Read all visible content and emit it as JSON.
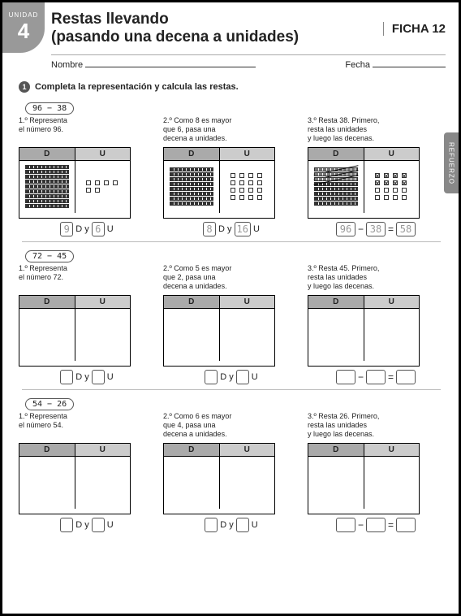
{
  "unit": {
    "label": "UNIDAD",
    "number": "4"
  },
  "title_line1": "Restas llevando",
  "title_line2": "(pasando una decena a unidades)",
  "ficha": "FICHA 12",
  "side_tab": "REFUERZO",
  "name_label": "Nombre",
  "date_label": "Fecha",
  "instruction_number": "1",
  "instruction_text": "Completa la representación y calcula las restas.",
  "headers": {
    "D": "D",
    "U": "U",
    "Dy": "D y",
    "Uu": "U"
  },
  "problems": [
    {
      "expression": "96 − 38",
      "steps": [
        {
          "text": "1.º Representa\nel número 96.",
          "answer_d": "9",
          "answer_u": "6",
          "tens": 9,
          "units": 6,
          "filled": true,
          "crossed_units": 0,
          "crossed_tens": 0
        },
        {
          "text": "2.º Como 8 es mayor\nque 6, pasa una\ndecena a unidades.",
          "answer_d": "8",
          "answer_u": "16",
          "tens": 8,
          "units": 16,
          "filled": true,
          "crossed_units": 0,
          "crossed_tens": 0
        },
        {
          "text": "3.º Resta 38. Primero,\nresta las unidades\ny luego las decenas.",
          "eq_a": "96",
          "eq_b": "38",
          "eq_r": "58",
          "tens": 8,
          "units": 16,
          "filled": true,
          "crossed_units": 8,
          "crossed_tens": 3
        }
      ]
    },
    {
      "expression": "72 − 45",
      "steps": [
        {
          "text": "1.º Representa\nel número 72.",
          "answer_d": "",
          "answer_u": "",
          "filled": false
        },
        {
          "text": "2.º Como 5 es mayor\nque 2, pasa una\ndecena a unidades.",
          "answer_d": "",
          "answer_u": "",
          "filled": false
        },
        {
          "text": "3.º Resta 45. Primero,\nresta las unidades\ny luego las decenas.",
          "eq_a": "",
          "eq_b": "",
          "eq_r": "",
          "filled": false
        }
      ]
    },
    {
      "expression": "54 − 26",
      "steps": [
        {
          "text": "1.º Representa\nel número 54.",
          "answer_d": "",
          "answer_u": "",
          "filled": false
        },
        {
          "text": "2.º Como 6 es mayor\nque 4, pasa una\ndecena a unidades.",
          "answer_d": "",
          "answer_u": "",
          "filled": false
        },
        {
          "text": "3.º Resta 26. Primero,\nresta las unidades\ny luego las decenas.",
          "eq_a": "",
          "eq_b": "",
          "eq_r": "",
          "filled": false
        }
      ]
    }
  ],
  "colors": {
    "badge": "#999999",
    "header_d": "#aaaaaa",
    "header_u": "#cccccc",
    "border": "#000000"
  }
}
